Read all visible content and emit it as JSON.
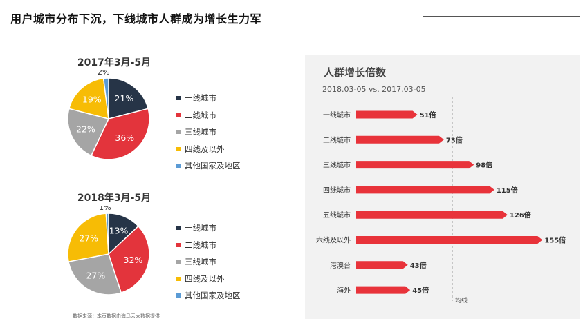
{
  "header": {
    "title": "用户城市分布下沉，下线城市人群成为增长生力军"
  },
  "source_note": "数据来源：本页数据由海马云大数据提供",
  "colors": {
    "navy": "#263447",
    "red": "#e3343c",
    "gray": "#a5a5a5",
    "yellow": "#f7bc05",
    "blue": "#5b9bd5",
    "bar_red": "#e8333a",
    "panel_bg": "#f2f2f2"
  },
  "chart_data": [
    {
      "type": "pie",
      "title": "2017年3月-5月",
      "categories": [
        "一线城市",
        "二线城市",
        "三线城市",
        "四线及以外",
        "其他国家及地区"
      ],
      "values": [
        21,
        36,
        22,
        19,
        2
      ],
      "value_labels": [
        "21%",
        "36%",
        "22%",
        "19%",
        "2%"
      ],
      "colors": [
        "#263447",
        "#e3343c",
        "#a5a5a5",
        "#f7bc05",
        "#5b9bd5"
      ],
      "legend": "right"
    },
    {
      "type": "pie",
      "title": "2018年3月-5月",
      "categories": [
        "一线城市",
        "二线城市",
        "三线城市",
        "四线及以外",
        "其他国家及地区"
      ],
      "values": [
        13,
        32,
        27,
        27,
        1
      ],
      "value_labels": [
        "13%",
        "32%",
        "27%",
        "27%",
        "1%"
      ],
      "colors": [
        "#263447",
        "#e3343c",
        "#a5a5a5",
        "#f7bc05",
        "#5b9bd5"
      ],
      "legend": "right"
    },
    {
      "type": "bar",
      "orientation": "horizontal",
      "title": "人群增长倍数",
      "subtitle": "2018.03-05 vs. 2017.03-05",
      "categories": [
        "一线城市",
        "二线城市",
        "三线城市",
        "四线城市",
        "五线城市",
        "六线及以外",
        "港澳台",
        "海外"
      ],
      "values": [
        51,
        73,
        98,
        115,
        126,
        155,
        43,
        45
      ],
      "value_labels": [
        "51倍",
        "73倍",
        "98倍",
        "115倍",
        "126倍",
        "155倍",
        "43倍",
        "45倍"
      ],
      "reference_line": {
        "value": 80,
        "label": "均线"
      },
      "xlim": [
        0,
        160
      ],
      "grid": false
    }
  ]
}
